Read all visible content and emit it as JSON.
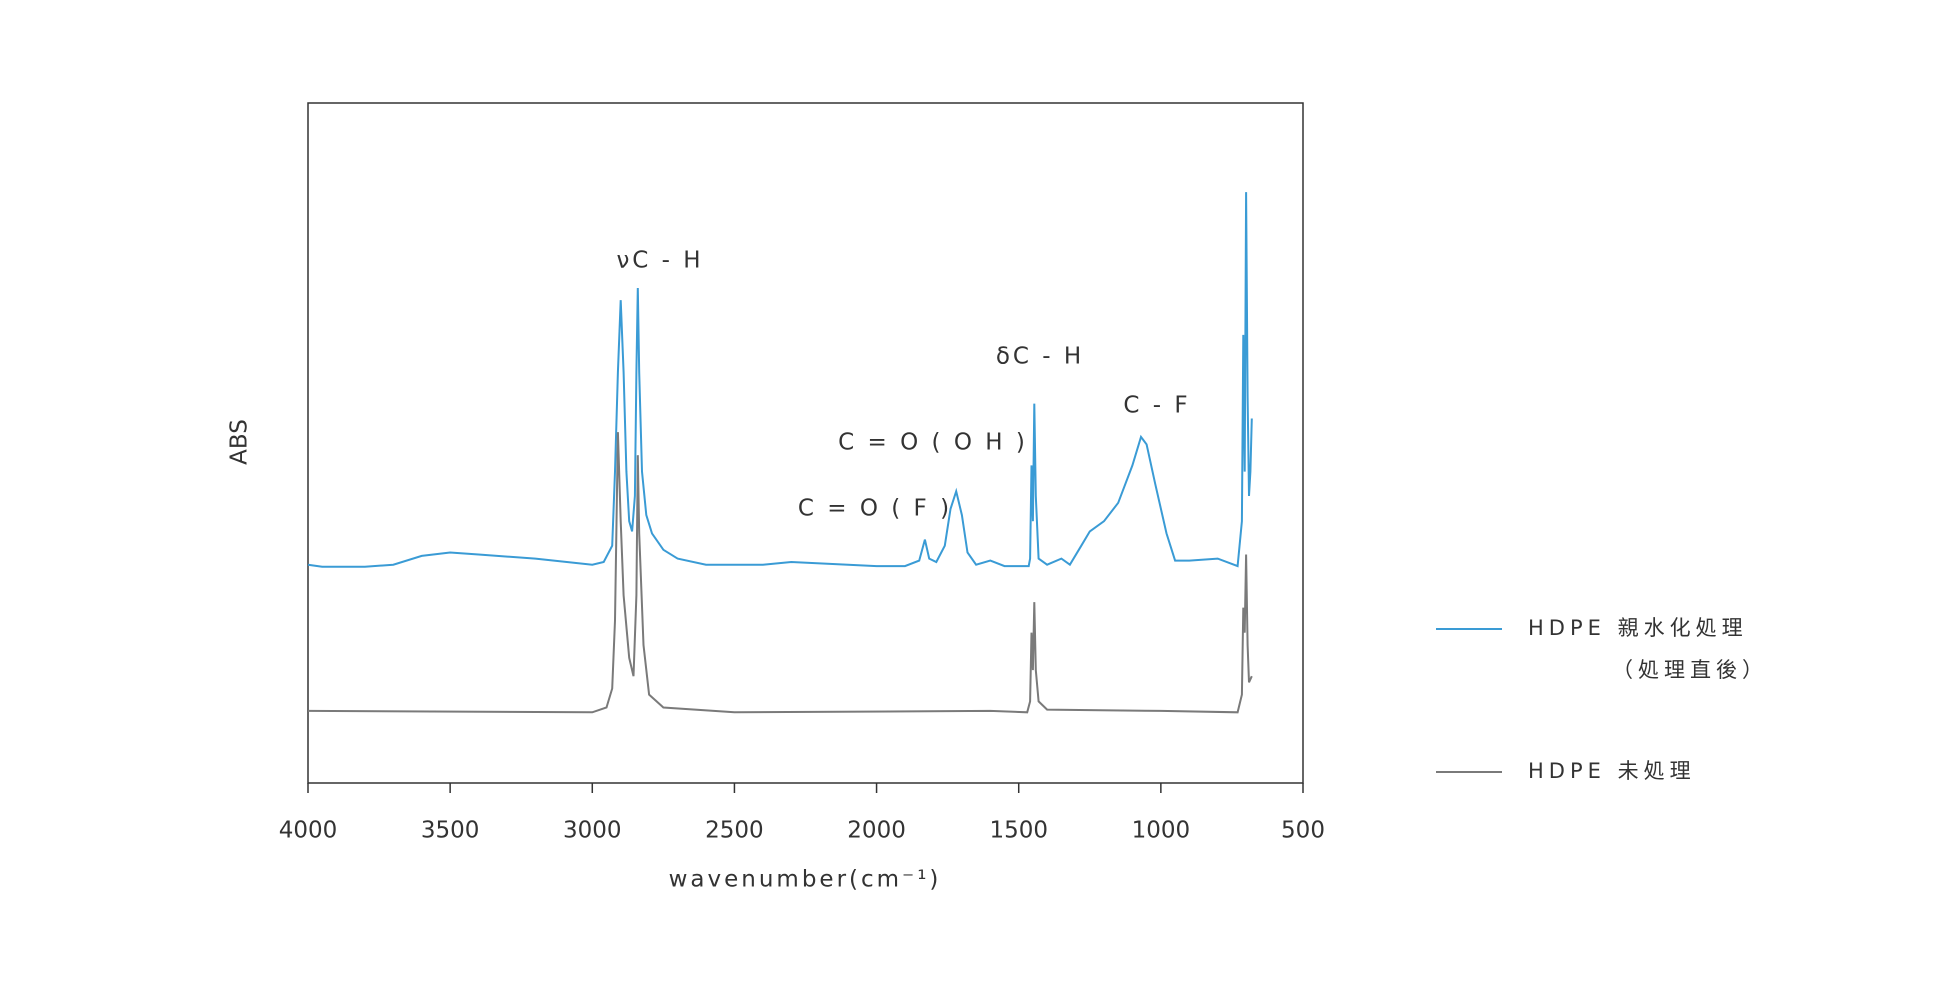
{
  "chart_data": {
    "type": "line",
    "x_label": "wavenumber(cm⁻¹)",
    "y_label": "ABS",
    "xlim": [
      4000,
      500
    ],
    "xticks": [
      4000,
      3500,
      3000,
      2500,
      2000,
      1500,
      1000,
      500
    ],
    "ylim": [
      0,
      100
    ],
    "annotations": [
      "νC - H",
      "δC - H",
      "C = O ( O H )",
      "C = O ( F )",
      "C - F"
    ],
    "series": [
      {
        "name": "HDPE 親水化処理（処理直後）",
        "color": "#3a9bd5",
        "x": [
          4000,
          3950,
          3800,
          3700,
          3600,
          3500,
          3400,
          3200,
          3000,
          2960,
          2930,
          2920,
          2910,
          2900,
          2890,
          2880,
          2870,
          2860,
          2850,
          2845,
          2840,
          2835,
          2825,
          2810,
          2790,
          2750,
          2700,
          2600,
          2400,
          2300,
          2000,
          1900,
          1850,
          1830,
          1815,
          1790,
          1760,
          1740,
          1720,
          1700,
          1680,
          1650,
          1600,
          1550,
          1465,
          1460,
          1455,
          1450,
          1445,
          1440,
          1430,
          1400,
          1350,
          1320,
          1280,
          1250,
          1200,
          1150,
          1100,
          1070,
          1050,
          1020,
          980,
          950,
          900,
          800,
          730,
          715,
          710,
          705,
          700,
          695,
          690,
          685,
          680
        ],
        "values": [
          32.1,
          31.8,
          31.8,
          32.1,
          33.4,
          33.9,
          33.6,
          33.0,
          32.1,
          32.5,
          34.9,
          45.8,
          60.4,
          71.0,
          60.4,
          45.8,
          38.5,
          37.0,
          42.2,
          60.4,
          72.8,
          60.4,
          45.8,
          39.4,
          36.7,
          34.3,
          33.0,
          32.1,
          32.1,
          32.5,
          31.9,
          31.9,
          32.7,
          35.8,
          33.0,
          32.5,
          34.9,
          40.3,
          42.9,
          39.4,
          33.9,
          32.1,
          32.7,
          31.9,
          31.9,
          33.0,
          46.7,
          38.5,
          55.8,
          42.2,
          33.0,
          32.1,
          33.0,
          32.1,
          34.9,
          37.0,
          38.5,
          41.2,
          46.7,
          50.9,
          49.8,
          44.0,
          36.7,
          32.7,
          32.7,
          33.0,
          31.9,
          38.5,
          65.9,
          45.8,
          86.9,
          56.8,
          42.2,
          45.8,
          53.6
        ]
      },
      {
        "name": "HDPE 未処理",
        "color": "#7a7a7a",
        "x": [
          4000,
          3000,
          2950,
          2930,
          2920,
          2910,
          2900,
          2890,
          2870,
          2855,
          2845,
          2840,
          2835,
          2820,
          2800,
          2750,
          2500,
          1600,
          1470,
          1460,
          1455,
          1450,
          1445,
          1440,
          1430,
          1400,
          1000,
          730,
          715,
          710,
          705,
          700,
          695,
          690,
          680
        ],
        "values": [
          10.6,
          10.4,
          11.1,
          13.9,
          23.9,
          51.6,
          38.5,
          27.6,
          18.4,
          15.7,
          27.6,
          48.2,
          36.7,
          20.3,
          13.0,
          11.1,
          10.4,
          10.6,
          10.4,
          12.0,
          22.1,
          16.6,
          26.6,
          16.6,
          12.0,
          10.8,
          10.6,
          10.4,
          13.0,
          25.8,
          22.1,
          33.6,
          20.3,
          14.8,
          15.7
        ]
      }
    ]
  }
}
